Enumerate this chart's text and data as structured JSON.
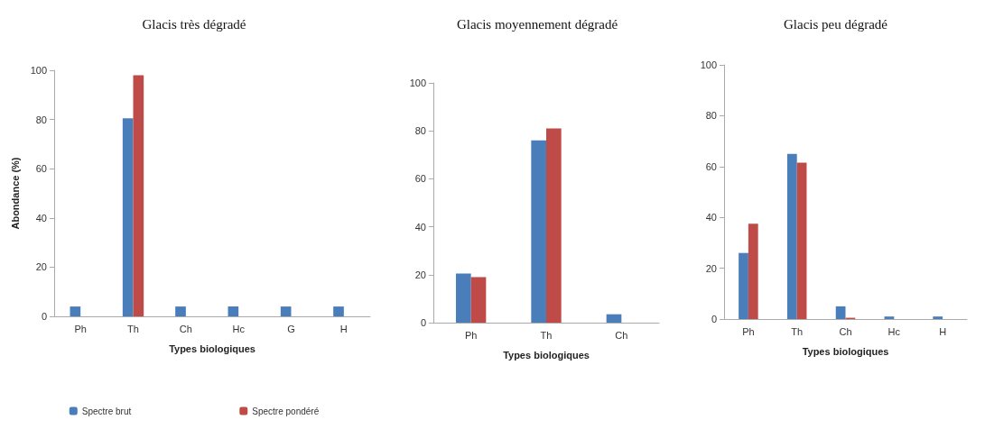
{
  "chart_data": [
    {
      "type": "bar",
      "title": "Glacis très dégradé",
      "xlabel": "Types biologiques",
      "ylabel": "Abondance (%)",
      "categories": [
        "Ph",
        "Th",
        "Ch",
        "Hc",
        "G",
        "H"
      ],
      "series": [
        {
          "name": "Spectre brut",
          "color": "#4a7ebb",
          "values": [
            4,
            80.5,
            4,
            4,
            4,
            4
          ]
        },
        {
          "name": "Spectre pondéré",
          "color": "#be4b48",
          "values": [
            0,
            98,
            0,
            0,
            0,
            0
          ]
        }
      ],
      "ylim": [
        0,
        100
      ],
      "yticks": [
        0,
        20,
        40,
        60,
        80,
        100
      ],
      "grid": false,
      "legend": "bottom"
    },
    {
      "type": "bar",
      "title": "Glacis moyennement dégradé",
      "xlabel": "Types biologiques",
      "categories": [
        "Ph",
        "Th",
        "Ch"
      ],
      "series": [
        {
          "color": "#4a7ebb",
          "values": [
            20.5,
            76,
            3.5
          ]
        },
        {
          "color": "#be4b48",
          "values": [
            19,
            81,
            0
          ]
        }
      ],
      "ylim": [
        0,
        100
      ],
      "yticks": [
        0,
        20,
        40,
        60,
        80,
        100
      ],
      "grid": false,
      "legend": false
    },
    {
      "type": "bar",
      "title": "Glacis peu dégradé",
      "xlabel": "Types biologiques",
      "categories": [
        "Ph",
        "Th",
        "Ch",
        "Hc",
        "H"
      ],
      "series": [
        {
          "color": "#4a7ebb",
          "values": [
            26,
            65,
            5,
            1,
            1
          ]
        },
        {
          "color": "#be4b48",
          "values": [
            37.5,
            61.5,
            0.5,
            0,
            0
          ]
        }
      ],
      "ylim": [
        0,
        100
      ],
      "yticks": [
        0,
        20,
        40,
        60,
        80,
        100
      ],
      "grid": false,
      "legend": false
    }
  ]
}
